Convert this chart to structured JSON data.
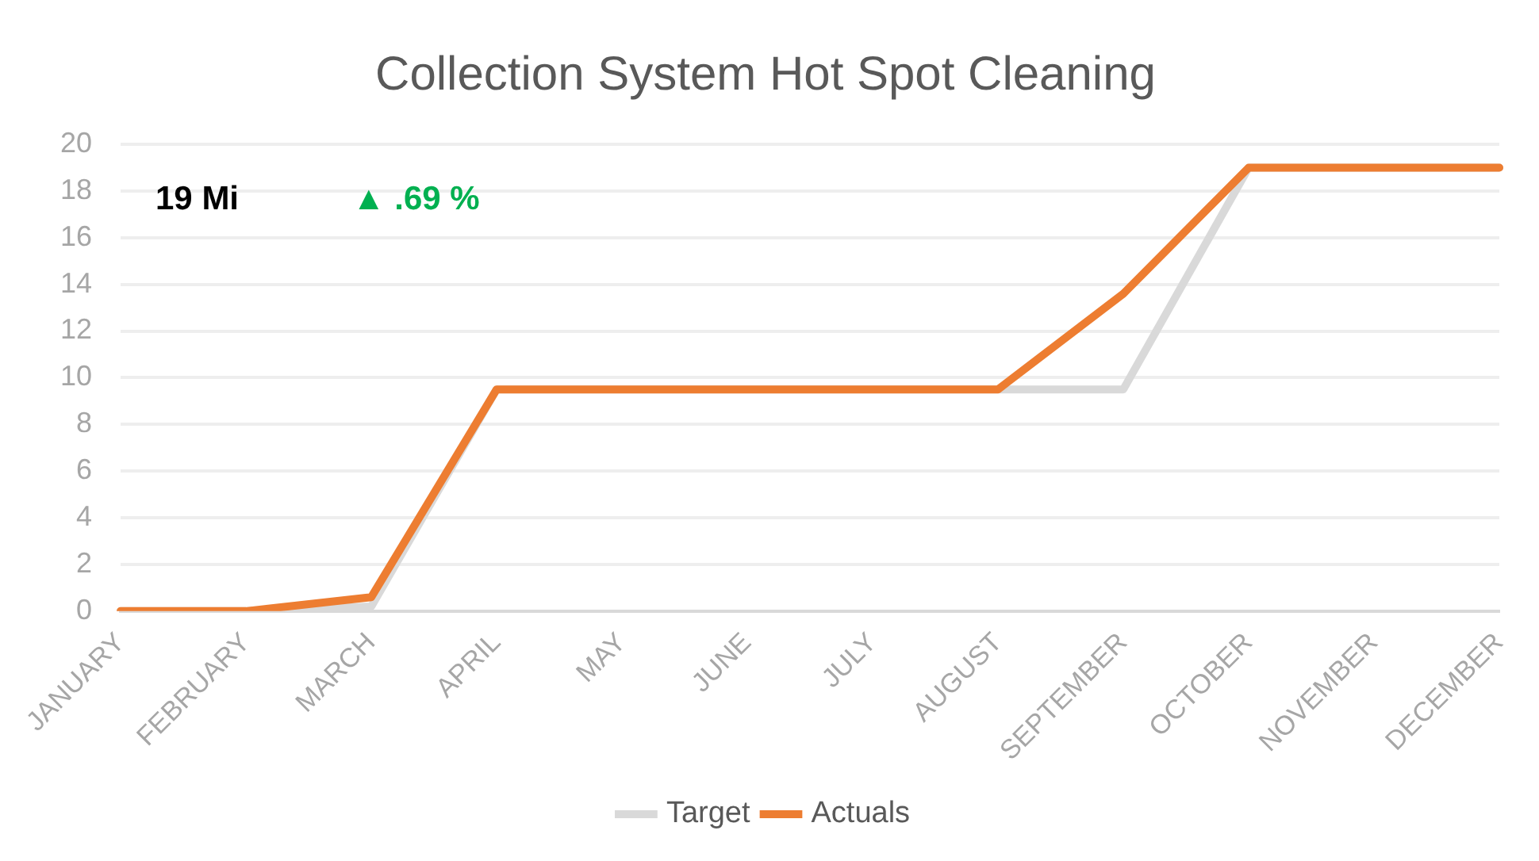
{
  "chart_data": {
    "type": "line",
    "title": "Collection System Hot Spot Cleaning",
    "categories": [
      "JANUARY",
      "FEBRUARY",
      "MARCH",
      "APRIL",
      "MAY",
      "JUNE",
      "JULY",
      "AUGUST",
      "SEPTEMBER",
      "OCTOBER",
      "NOVEMBER",
      "DECEMBER"
    ],
    "series": [
      {
        "name": "Target",
        "color": "#d9d9d9",
        "values": [
          0,
          0,
          0.2,
          9.5,
          9.5,
          9.5,
          9.5,
          9.5,
          9.5,
          19,
          19,
          19
        ]
      },
      {
        "name": "Actuals",
        "color": "#ed7d31",
        "values": [
          0,
          0,
          0.6,
          9.5,
          9.5,
          9.5,
          9.5,
          9.5,
          13.6,
          19,
          19,
          19
        ]
      }
    ],
    "ylim": [
      0,
      20
    ],
    "yticks": [
      0,
      2,
      4,
      6,
      8,
      10,
      12,
      14,
      16,
      18,
      20
    ],
    "grid": "y",
    "legend": "bottom",
    "line_style": "solid",
    "annotations": [
      "19 Mi",
      "▲ .69 %"
    ]
  }
}
